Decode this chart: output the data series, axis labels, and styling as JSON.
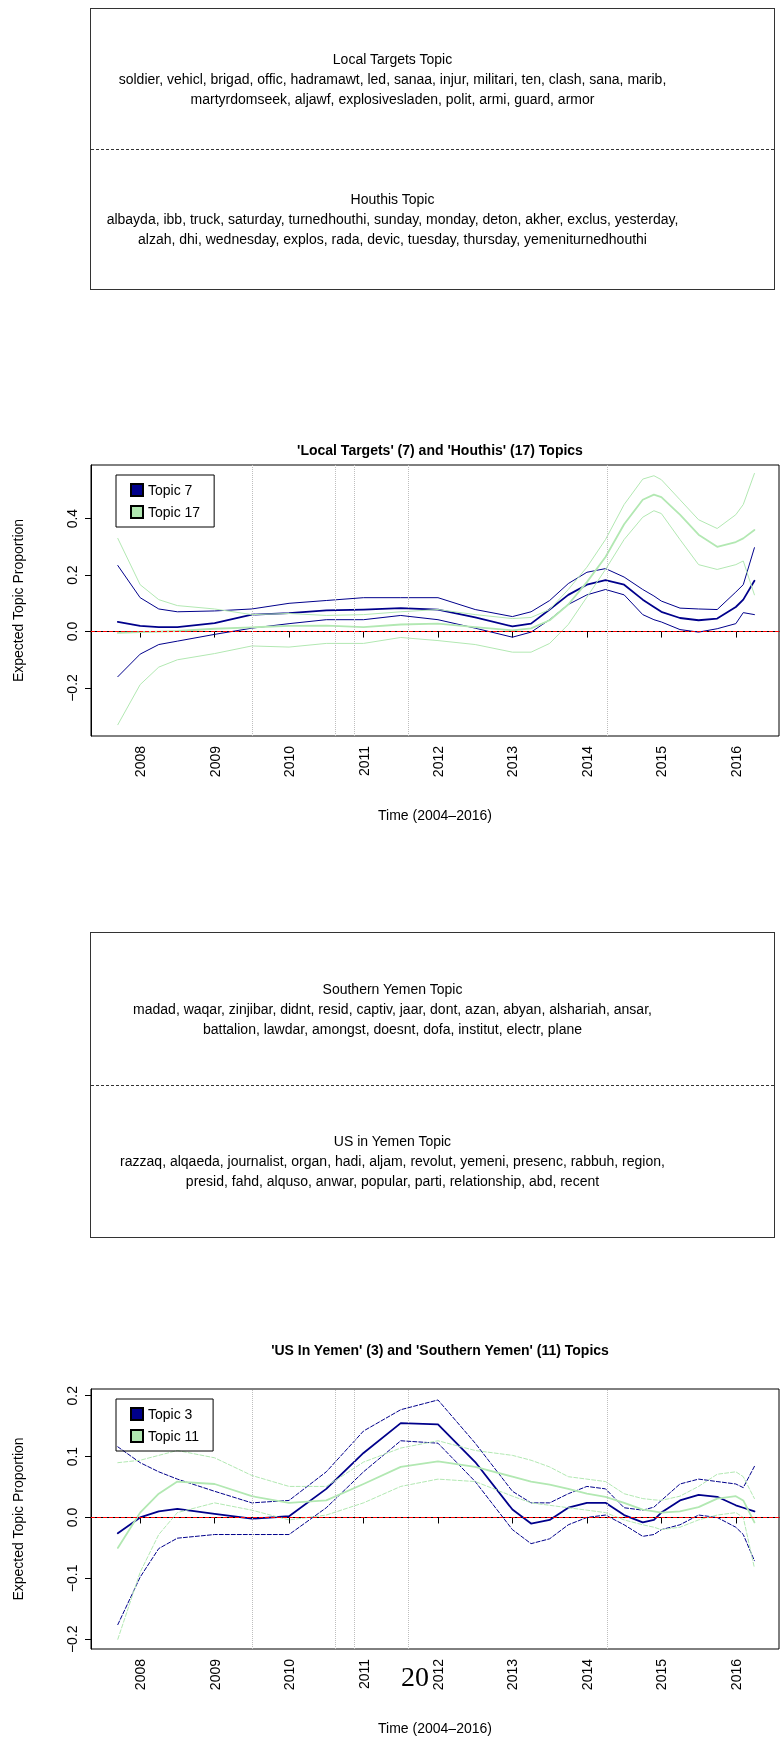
{
  "chart_data": [
    {
      "type": "other",
      "annotations": [
        "Local Targets Topic",
        "soldier, vehicl, brigad, offic, hadramawt, led, sanaa, injur, militari, ten, clash, sana, marib, martyrdomseek, aljawf, explosivesladen, polit, armi, guard, armor",
        "Houthis Topic",
        "albayda, ibb, truck, saturday, turnedhouthi, sunday, monday, deton, akher, exclus, yesterday, alzah, dhi, wednesday, explos, rada, devic, tuesday, thursday, yemeniturnedhouthi"
      ]
    },
    {
      "type": "line",
      "title": "'Local Targets' (7) and 'Houthis' (17) Topics",
      "xlabel": "Time (2004–2016)",
      "ylabel": "Expected Topic Proportion",
      "legend": "top left",
      "grid": false,
      "marker": "none",
      "xlim": [
        2007.34,
        2016.58
      ],
      "xticks": [
        2008,
        2009,
        2010,
        2011,
        2012,
        2013,
        2014,
        2015,
        2016
      ],
      "ylim": [
        -0.37,
        0.59
      ],
      "yticks": [
        {
          "value": -0.2,
          "label": "−0.2"
        },
        {
          "value": 0,
          "label": "0.0"
        },
        0.2,
        0.4
      ],
      "x": [
        2007.7,
        2008,
        2008.25,
        2008.5,
        2009,
        2009.5,
        2010,
        2010.5,
        2011,
        2011.5,
        2012,
        2012.5,
        2013,
        2013.25,
        2013.5,
        2013.75,
        2014,
        2014.25,
        2014.5,
        2014.75,
        2014.9,
        2015,
        2015.25,
        2015.5,
        2015.75,
        2016,
        2016.1,
        2016.25
      ],
      "series": [
        {
          "name": "Topic 7",
          "color": "#00008b",
          "values": [
            0.034,
            0.02,
            0.016,
            0.016,
            0.03,
            0.06,
            0.065,
            0.075,
            0.078,
            0.083,
            0.078,
            0.05,
            0.018,
            0.028,
            0.078,
            0.13,
            0.166,
            0.182,
            0.166,
            0.113,
            0.087,
            0.07,
            0.048,
            0.04,
            0.046,
            0.087,
            0.113,
            0.18
          ]
        },
        {
          "color": "#00008b",
          "values": [
            0.234,
            0.12,
            0.08,
            0.07,
            0.073,
            0.08,
            0.1,
            0.11,
            0.12,
            0.12,
            0.12,
            0.078,
            0.053,
            0.07,
            0.11,
            0.17,
            0.21,
            0.223,
            0.193,
            0.149,
            0.126,
            0.108,
            0.083,
            0.08,
            0.078,
            0.14,
            0.166,
            0.297
          ]
        },
        {
          "color": "#00008b",
          "values": [
            -0.16,
            -0.08,
            -0.046,
            -0.034,
            -0.01,
            0.012,
            0.028,
            0.042,
            0.042,
            0.057,
            0.042,
            0.012,
            -0.02,
            -0.002,
            0.042,
            0.096,
            0.13,
            0.149,
            0.13,
            0.06,
            0.042,
            0.034,
            0.007,
            -0.002,
            0.01,
            0.028,
            0.067,
            0.06
          ]
        },
        {
          "name": "Topic 17",
          "color": "#b2e8b2",
          "values": [
            -0.005,
            -0.002,
            0.0,
            0.002,
            0.01,
            0.015,
            0.02,
            0.021,
            0.016,
            0.025,
            0.028,
            0.016,
            0.004,
            0.011,
            0.04,
            0.096,
            0.175,
            0.264,
            0.38,
            0.467,
            0.485,
            0.476,
            0.414,
            0.343,
            0.3,
            0.317,
            0.33,
            0.36
          ]
        },
        {
          "color": "#b2e8b2",
          "values": [
            0.33,
            0.166,
            0.113,
            0.092,
            0.08,
            0.06,
            0.064,
            0.057,
            0.06,
            0.07,
            0.078,
            0.06,
            0.046,
            0.05,
            0.078,
            0.149,
            0.228,
            0.326,
            0.45,
            0.54,
            0.552,
            0.538,
            0.467,
            0.396,
            0.365,
            0.414,
            0.45,
            0.56
          ]
        },
        {
          "color": "#b2e8b2",
          "values": [
            -0.33,
            -0.188,
            -0.126,
            -0.1,
            -0.078,
            -0.051,
            -0.055,
            -0.042,
            -0.042,
            -0.021,
            -0.032,
            -0.046,
            -0.073,
            -0.073,
            -0.042,
            0.025,
            0.122,
            0.22,
            0.326,
            0.405,
            0.428,
            0.418,
            0.326,
            0.237,
            0.22,
            0.237,
            0.25,
            0.13
          ]
        }
      ],
      "ref_lines": [
        {
          "axis": "y",
          "value": 0,
          "color": "#ff0000",
          "line_style": "dashed"
        },
        {
          "axis": "x",
          "value": 2009.5,
          "color": "#bebebe",
          "line_style": "dotted"
        },
        {
          "axis": "x",
          "value": 2010.62,
          "color": "#bebebe",
          "line_style": "dotted"
        },
        {
          "axis": "x",
          "value": 2010.88,
          "color": "#bebebe",
          "line_style": "dotted"
        },
        {
          "axis": "x",
          "value": 2011.6,
          "color": "#bebebe",
          "line_style": "dotted"
        },
        {
          "axis": "x",
          "value": 2014.27,
          "color": "#bebebe",
          "line_style": "dotted"
        }
      ]
    },
    {
      "type": "other",
      "annotations": [
        "Southern Yemen Topic",
        "madad, waqar, zinjibar, didnt, resid, captiv, jaar, dont, azan, abyan, alshariah, ansar, battalion, lawdar, amongst, doesnt, dofa, institut, electr, plane",
        "US in Yemen Topic",
        "razzaq, alqaeda, journalist, organ, hadi, aljam, revolut, yemeni, presenc, rabbuh, region, presid, fahd, alquso, anwar, popular, parti, relationship, abd, recent"
      ]
    },
    {
      "type": "line",
      "title": "'US In Yemen' (3) and 'Southern Yemen' (11) Topics",
      "xlabel": "Time (2004–2016)",
      "ylabel": "Expected Topic Proportion",
      "legend": "top left",
      "grid": false,
      "marker": "none",
      "annotations": [
        "20"
      ],
      "xlim": [
        2007.34,
        2016.58
      ],
      "xticks": [
        2008,
        2009,
        2010,
        2011,
        2012,
        2013,
        2014,
        2015,
        2016
      ],
      "ylim": [
        -0.216,
        0.211
      ],
      "yticks": [
        {
          "value": -0.2,
          "label": "−0.2"
        },
        {
          "value": -0.1,
          "label": "−0.1"
        },
        {
          "value": 0,
          "label": "0.0"
        },
        0.1,
        0.2
      ],
      "x": [
        2007.7,
        2008,
        2008.25,
        2008.5,
        2009,
        2009.5,
        2010,
        2010.5,
        2011,
        2011.5,
        2012,
        2012.5,
        2013,
        2013.25,
        2013.5,
        2013.75,
        2014,
        2014.25,
        2014.5,
        2014.75,
        2014.9,
        2015,
        2015.25,
        2015.5,
        2015.75,
        2016,
        2016.1,
        2016.25
      ],
      "series": [
        {
          "name": "Topic 3",
          "color": "#00008b",
          "values": [
            -0.026,
            0,
            0.01,
            0.014,
            0.006,
            -0.002,
            0.002,
            0.047,
            0.106,
            0.155,
            0.153,
            0.091,
            0.013,
            -0.01,
            -0.004,
            0.016,
            0.024,
            0.024,
            0.004,
            -0.008,
            -0.004,
            0.008,
            0.028,
            0.037,
            0.034,
            0.02,
            0.016,
            0.01
          ]
        },
        {
          "color": "#00008b",
          "line_style": "dashed",
          "values": [
            0.116,
            0.09,
            0.075,
            0.063,
            0.043,
            0.024,
            0.028,
            0.075,
            0.142,
            0.177,
            0.193,
            0.122,
            0.043,
            0.024,
            0.024,
            0.039,
            0.051,
            0.047,
            0.016,
            0.012,
            0.017,
            0.028,
            0.055,
            0.063,
            0.059,
            0.055,
            0.049,
            0.084
          ]
        },
        {
          "color": "#00008b",
          "line_style": "dashed",
          "values": [
            -0.176,
            -0.098,
            -0.051,
            -0.034,
            -0.028,
            -0.028,
            -0.028,
            0.016,
            0.075,
            0.126,
            0.122,
            0.059,
            -0.02,
            -0.043,
            -0.035,
            -0.012,
            0,
            0.004,
            -0.012,
            -0.031,
            -0.028,
            -0.02,
            -0.012,
            0.004,
            0,
            -0.016,
            -0.028,
            -0.071
          ]
        },
        {
          "name": "Topic 11",
          "color": "#b2e8b2",
          "values": [
            -0.05,
            0.008,
            0.039,
            0.059,
            0.055,
            0.035,
            0.024,
            0.028,
            0.055,
            0.083,
            0.092,
            0.083,
            0.067,
            0.059,
            0.054,
            0.047,
            0.039,
            0.034,
            0.024,
            0.013,
            0.01,
            0.008,
            0.01,
            0.017,
            0.031,
            0.035,
            0.028,
            -0.008
          ]
        },
        {
          "color": "#b2e8b2",
          "line_style": "dashed",
          "values": [
            0.09,
            0.094,
            0.102,
            0.11,
            0.098,
            0.069,
            0.051,
            0.051,
            0.091,
            0.114,
            0.126,
            0.11,
            0.102,
            0.094,
            0.083,
            0.067,
            0.063,
            0.059,
            0.039,
            0.031,
            0.029,
            0.028,
            0.035,
            0.051,
            0.071,
            0.075,
            0.067,
            0.031
          ]
        },
        {
          "color": "#b2e8b2",
          "line_style": "dashed",
          "values": [
            -0.2,
            -0.09,
            -0.028,
            0.008,
            0.024,
            0.012,
            -0.004,
            0.004,
            0.024,
            0.051,
            0.063,
            0.059,
            0.035,
            0.024,
            0.02,
            0.016,
            0.012,
            0.008,
            -0.004,
            -0.012,
            -0.016,
            -0.02,
            -0.016,
            -0.004,
            0.004,
            0.008,
            0,
            -0.083
          ]
        }
      ],
      "ref_lines": [
        {
          "axis": "y",
          "value": 0,
          "color": "#ff0000",
          "line_style": "dashed"
        },
        {
          "axis": "x",
          "value": 2009.5,
          "color": "#bebebe",
          "line_style": "dotted"
        },
        {
          "axis": "x",
          "value": 2010.62,
          "color": "#bebebe",
          "line_style": "dotted"
        },
        {
          "axis": "x",
          "value": 2010.88,
          "color": "#bebebe",
          "line_style": "dotted"
        },
        {
          "axis": "x",
          "value": 2011.6,
          "color": "#bebebe",
          "line_style": "dotted"
        },
        {
          "axis": "x",
          "value": 2014.27,
          "color": "#bebebe",
          "line_style": "dotted"
        }
      ]
    }
  ]
}
